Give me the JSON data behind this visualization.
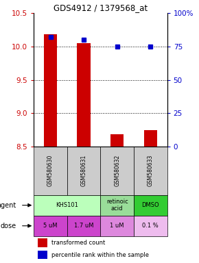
{
  "title": "GDS4912 / 1379568_at",
  "samples": [
    "GSM580630",
    "GSM580631",
    "GSM580632",
    "GSM580633"
  ],
  "bar_values": [
    10.18,
    10.05,
    8.68,
    8.74
  ],
  "bar_base": 8.5,
  "percentile_values": [
    82,
    80,
    75,
    75
  ],
  "ylim_left": [
    8.5,
    10.5
  ],
  "ylim_right": [
    0,
    100
  ],
  "yticks_left": [
    8.5,
    9.0,
    9.5,
    10.0,
    10.5
  ],
  "yticks_right": [
    0,
    25,
    50,
    75,
    100
  ],
  "ytick_labels_right": [
    "0",
    "25",
    "50",
    "75",
    "100%"
  ],
  "bar_color": "#cc0000",
  "dot_color": "#0000cc",
  "agent_groups": [
    {
      "cols": [
        0,
        1
      ],
      "label": "KHS101",
      "color": "#bbffbb"
    },
    {
      "cols": [
        2
      ],
      "label": "retinoic\nacid",
      "color": "#99dd99"
    },
    {
      "cols": [
        3
      ],
      "label": "DMSO",
      "color": "#33cc33"
    }
  ],
  "dose_labels": [
    "5 uM",
    "1.7 uM",
    "1 uM",
    "0.1 %"
  ],
  "dose_colors": [
    "#cc44cc",
    "#cc44cc",
    "#dd88dd",
    "#eebcee"
  ],
  "sample_bg_color": "#cccccc",
  "left_tick_color": "#cc0000",
  "right_tick_color": "#0000cc",
  "legend_bar_label": "transformed count",
  "legend_dot_label": "percentile rank within the sample"
}
